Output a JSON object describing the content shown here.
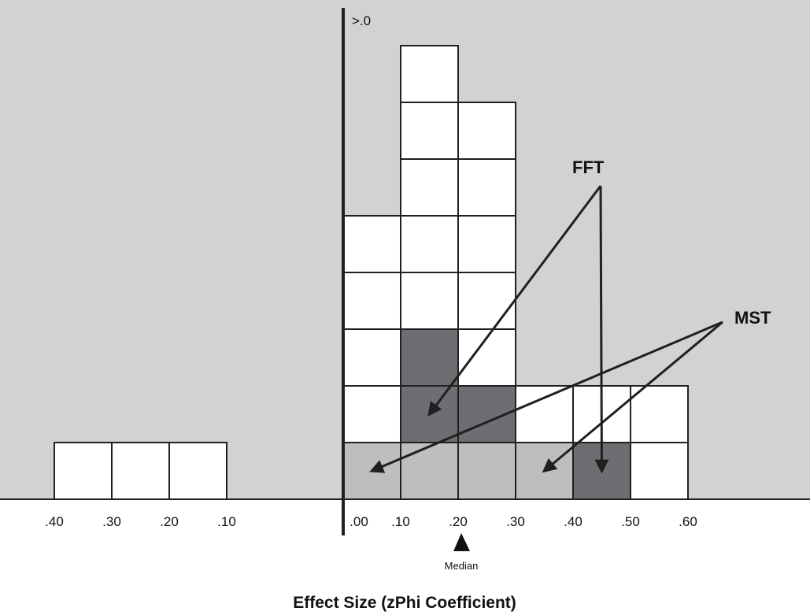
{
  "chart_data": {
    "type": "stem-and-leaf histogram",
    "title": "",
    "xlabel": "Effect Size (zPhi Coefficient)",
    "ylabel": "",
    "top_label": ">.0",
    "median_label": "Median",
    "median_value": 0.2,
    "background_color": "#d1d2d4",
    "negative_tick_labels": [
      ".40",
      ".30",
      ".20",
      ".10"
    ],
    "positive_tick_labels": [
      ".00",
      ".10",
      ".20",
      ".30",
      ".40",
      ".50",
      ".60"
    ],
    "legend": {
      "fill_colors": {
        "white": "#ffffff",
        "light": "#bcbec0",
        "dark": "#6d6e71"
      }
    },
    "bins": [
      {
        "side": "negative",
        "bin": [
          0.3,
          0.4
        ],
        "cells": [
          "white"
        ]
      },
      {
        "side": "negative",
        "bin": [
          0.2,
          0.3
        ],
        "cells": [
          "white"
        ]
      },
      {
        "side": "negative",
        "bin": [
          0.1,
          0.2
        ],
        "cells": [
          "white"
        ]
      },
      {
        "side": "positive",
        "bin": [
          0.0,
          0.1
        ],
        "cells": [
          "light",
          "white",
          "white",
          "white",
          "white"
        ]
      },
      {
        "side": "positive",
        "bin": [
          0.1,
          0.2
        ],
        "cells": [
          "light",
          "dark",
          "dark",
          "white",
          "white",
          "white",
          "white",
          "white"
        ]
      },
      {
        "side": "positive",
        "bin": [
          0.2,
          0.3
        ],
        "cells": [
          "light",
          "dark",
          "white",
          "white",
          "white",
          "white",
          "white"
        ]
      },
      {
        "side": "positive",
        "bin": [
          0.3,
          0.4
        ],
        "cells": [
          "light",
          "white"
        ]
      },
      {
        "side": "positive",
        "bin": [
          0.4,
          0.5
        ],
        "cells": [
          "dark",
          "white"
        ]
      },
      {
        "side": "positive",
        "bin": [
          0.5,
          0.6
        ],
        "cells": [
          "white",
          "white"
        ]
      }
    ],
    "annotations": [
      {
        "label": "FFT",
        "points_to": [
          {
            "bin": [
              0.1,
              0.2
            ],
            "level": 2
          },
          {
            "bin": [
              0.4,
              0.5
            ],
            "level": 1
          }
        ]
      },
      {
        "label": "MST",
        "points_to": [
          {
            "bin": [
              0.0,
              0.1
            ],
            "level": 1
          },
          {
            "bin": [
              0.3,
              0.4
            ],
            "level": 1
          }
        ]
      }
    ]
  }
}
